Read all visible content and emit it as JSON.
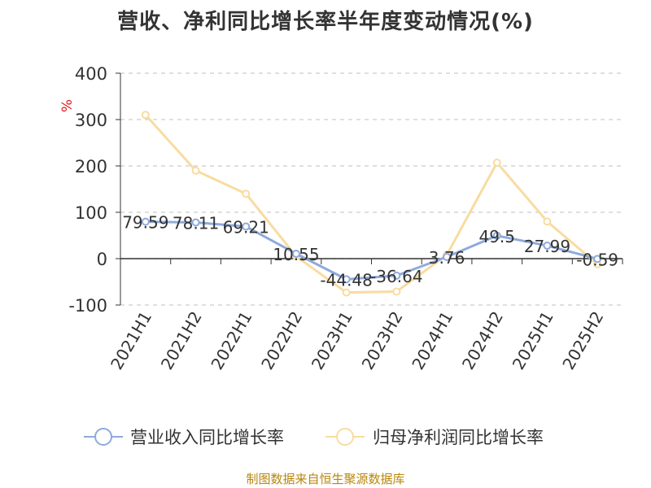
{
  "title": "营收、净利同比增长率半年度变动情况(%)",
  "source_note": "制图数据来自恒生聚源数据库",
  "colors": {
    "series_revenue": "#8faadc",
    "series_profit": "#f8dca0",
    "grid": "#cccccc",
    "axis": "#333333",
    "unit_label": "#e02020",
    "text": "#333333",
    "source_note": "#b8860b"
  },
  "chart_data": {
    "type": "line",
    "title": "营收、净利同比增长率半年度变动情况(%)",
    "ylabel": "%",
    "ylim": [
      -100,
      400
    ],
    "yticks": [
      400,
      300,
      200,
      100,
      0,
      -100
    ],
    "grid": true,
    "legend_position": "bottom",
    "categories": [
      "2021H1",
      "2021H2",
      "2022H1",
      "2022H2",
      "2023H1",
      "2023H2",
      "2024H1",
      "2024H2",
      "2025H1",
      "2025H2"
    ],
    "series": [
      {
        "name": "营业收入同比增长率",
        "values": [
          79.59,
          78.11,
          69.21,
          10.55,
          -44.48,
          -36.64,
          3.76,
          49.5,
          27.99,
          -0.59
        ],
        "labels": [
          "79.59",
          "78.11",
          "69.21",
          "10.55",
          "-44.48",
          "-36.64",
          "3.76",
          "49.5",
          "27.99",
          "-0.59"
        ]
      },
      {
        "name": "归母净利润同比增长率",
        "values": [
          310,
          190,
          140,
          5,
          -73,
          -71,
          8,
          207,
          80,
          -12
        ]
      }
    ]
  }
}
